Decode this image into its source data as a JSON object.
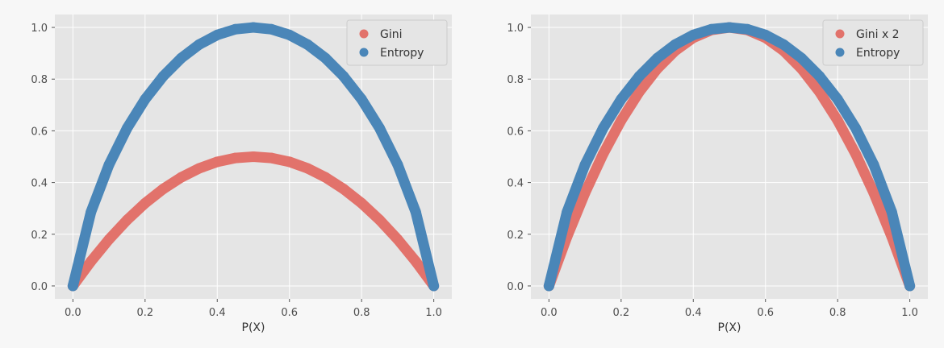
{
  "colors": {
    "figure_bg": "#f7f7f7",
    "axes_bg": "#e5e5e5",
    "grid": "#ffffff",
    "gini": "#e2726b",
    "entropy": "#4a86b8"
  },
  "chart_data": [
    {
      "type": "scatter",
      "xlabel": "P(X)",
      "ylabel": "",
      "xlim": [
        -0.05,
        1.05
      ],
      "ylim": [
        -0.05,
        1.05
      ],
      "xticks": [
        "0.0",
        "0.2",
        "0.4",
        "0.6",
        "0.8",
        "1.0"
      ],
      "yticks": [
        "0.0",
        "0.2",
        "0.4",
        "0.6",
        "0.8",
        "1.0"
      ],
      "grid": true,
      "legend_position": "top-right",
      "series": [
        {
          "name": "Gini",
          "color": "#e2726b",
          "x": [
            0,
            0.05,
            0.1,
            0.15,
            0.2,
            0.25,
            0.3,
            0.35,
            0.4,
            0.45,
            0.5,
            0.55,
            0.6,
            0.65,
            0.7,
            0.75,
            0.8,
            0.85,
            0.9,
            0.95,
            1
          ],
          "y": [
            0,
            0.095,
            0.18,
            0.255,
            0.32,
            0.375,
            0.42,
            0.455,
            0.48,
            0.495,
            0.5,
            0.495,
            0.48,
            0.455,
            0.42,
            0.375,
            0.32,
            0.255,
            0.18,
            0.095,
            0
          ]
        },
        {
          "name": "Entropy",
          "color": "#4a86b8",
          "x": [
            0,
            0.05,
            0.1,
            0.15,
            0.2,
            0.25,
            0.3,
            0.35,
            0.4,
            0.45,
            0.5,
            0.55,
            0.6,
            0.65,
            0.7,
            0.75,
            0.8,
            0.85,
            0.9,
            0.95,
            1
          ],
          "y": [
            0,
            0.286,
            0.469,
            0.61,
            0.722,
            0.811,
            0.881,
            0.934,
            0.971,
            0.993,
            1,
            0.993,
            0.971,
            0.934,
            0.881,
            0.811,
            0.722,
            0.61,
            0.469,
            0.286,
            0
          ]
        }
      ]
    },
    {
      "type": "scatter",
      "xlabel": "P(X)",
      "ylabel": "",
      "xlim": [
        -0.05,
        1.05
      ],
      "ylim": [
        -0.05,
        1.05
      ],
      "xticks": [
        "0.0",
        "0.2",
        "0.4",
        "0.6",
        "0.8",
        "1.0"
      ],
      "yticks": [
        "0.0",
        "0.2",
        "0.4",
        "0.6",
        "0.8",
        "1.0"
      ],
      "grid": true,
      "legend_position": "top-right",
      "series": [
        {
          "name": "Gini x 2",
          "color": "#e2726b",
          "x": [
            0,
            0.05,
            0.1,
            0.15,
            0.2,
            0.25,
            0.3,
            0.35,
            0.4,
            0.45,
            0.5,
            0.55,
            0.6,
            0.65,
            0.7,
            0.75,
            0.8,
            0.85,
            0.9,
            0.95,
            1
          ],
          "y": [
            0,
            0.19,
            0.36,
            0.51,
            0.64,
            0.75,
            0.84,
            0.91,
            0.96,
            0.99,
            1,
            0.99,
            0.96,
            0.91,
            0.84,
            0.75,
            0.64,
            0.51,
            0.36,
            0.19,
            0
          ]
        },
        {
          "name": "Entropy",
          "color": "#4a86b8",
          "x": [
            0,
            0.05,
            0.1,
            0.15,
            0.2,
            0.25,
            0.3,
            0.35,
            0.4,
            0.45,
            0.5,
            0.55,
            0.6,
            0.65,
            0.7,
            0.75,
            0.8,
            0.85,
            0.9,
            0.95,
            1
          ],
          "y": [
            0,
            0.286,
            0.469,
            0.61,
            0.722,
            0.811,
            0.881,
            0.934,
            0.971,
            0.993,
            1,
            0.993,
            0.971,
            0.934,
            0.881,
            0.811,
            0.722,
            0.61,
            0.469,
            0.286,
            0
          ]
        }
      ]
    }
  ]
}
